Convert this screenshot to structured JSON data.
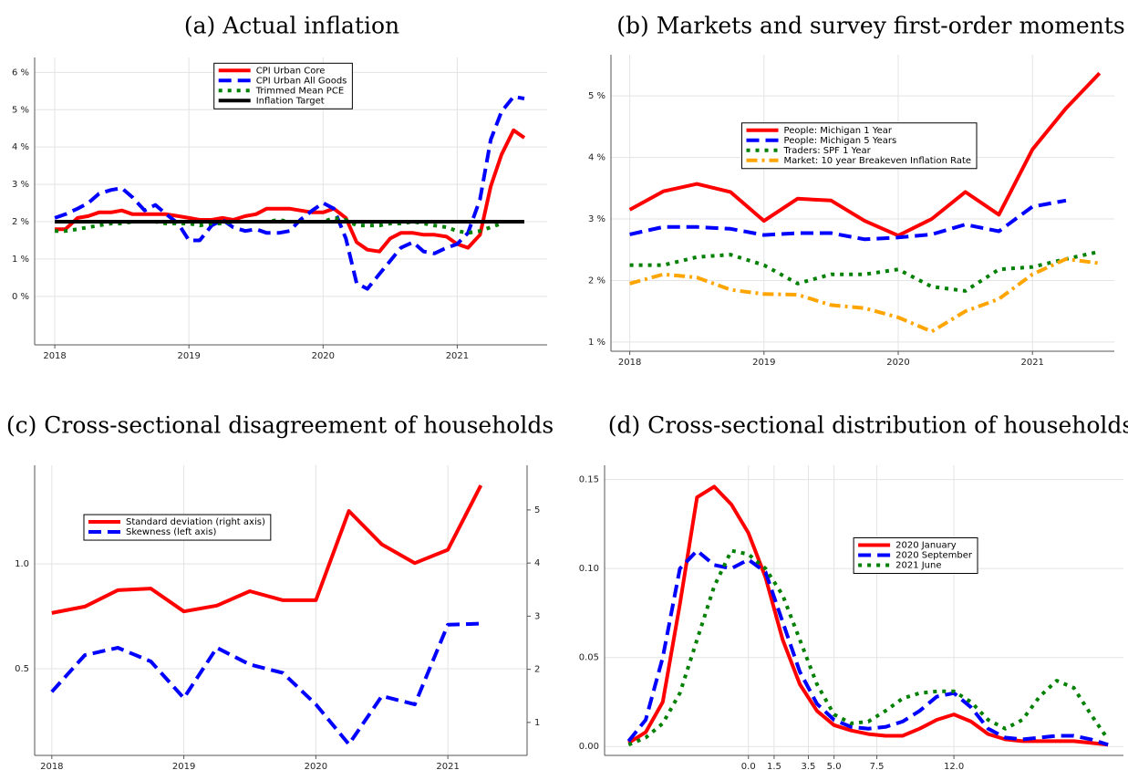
{
  "chart_data": [
    {
      "type": "line",
      "title": "(a) Actual inflation",
      "x": [
        2018,
        2018.08,
        2018.17,
        2018.25,
        2018.33,
        2018.42,
        2018.5,
        2018.58,
        2018.67,
        2018.75,
        2018.83,
        2018.92,
        2019,
        2019.08,
        2019.17,
        2019.25,
        2019.33,
        2019.42,
        2019.5,
        2019.58,
        2019.67,
        2019.75,
        2019.83,
        2019.92,
        2020,
        2020.08,
        2020.17,
        2020.25,
        2020.33,
        2020.42,
        2020.5,
        2020.58,
        2020.67,
        2020.75,
        2020.83,
        2020.92,
        2021,
        2021.08,
        2021.17,
        2021.25,
        2021.33,
        2021.42,
        2021.5
      ],
      "series": [
        {
          "name": "CPI Urban Core",
          "color": "#ff0000",
          "style": "solid",
          "values": [
            1.8,
            1.8,
            2.1,
            2.15,
            2.25,
            2.25,
            2.3,
            2.2,
            2.2,
            2.2,
            2.2,
            2.15,
            2.1,
            2.05,
            2.05,
            2.1,
            2.05,
            2.15,
            2.2,
            2.35,
            2.35,
            2.35,
            2.3,
            2.25,
            2.25,
            2.35,
            2.1,
            1.45,
            1.25,
            1.2,
            1.55,
            1.7,
            1.7,
            1.65,
            1.65,
            1.6,
            1.4,
            1.3,
            1.65,
            2.95,
            3.8,
            4.45,
            4.25
          ]
        },
        {
          "name": "CPI Urban All Goods",
          "color": "#0000ff",
          "style": "dashed",
          "values": [
            2.1,
            2.2,
            2.35,
            2.5,
            2.75,
            2.85,
            2.9,
            2.65,
            2.3,
            2.45,
            2.2,
            1.95,
            1.5,
            1.5,
            1.9,
            2.05,
            1.85,
            1.75,
            1.8,
            1.7,
            1.7,
            1.75,
            2.05,
            2.3,
            2.5,
            2.35,
            1.55,
            0.35,
            0.2,
            0.6,
            0.95,
            1.3,
            1.45,
            1.2,
            1.15,
            1.3,
            1.4,
            1.7,
            2.6,
            4.2,
            4.95,
            5.35,
            5.3
          ]
        },
        {
          "name": "Trimmed Mean PCE",
          "color": "#008000",
          "style": "dotted",
          "values": [
            1.75,
            1.75,
            1.8,
            1.85,
            1.9,
            1.95,
            1.95,
            2.0,
            2.0,
            2.0,
            1.95,
            1.95,
            1.95,
            1.9,
            1.95,
            1.95,
            2.0,
            2.0,
            2.0,
            2.0,
            2.05,
            2.0,
            2.0,
            2.0,
            2.0,
            2.1,
            2.05,
            1.9,
            1.9,
            1.9,
            1.95,
            1.95,
            2.0,
            1.95,
            1.9,
            1.85,
            1.75,
            1.7,
            1.75,
            1.85,
            1.95,
            null,
            null
          ]
        },
        {
          "name": "Inflation Target",
          "color": "#000000",
          "style": "solid",
          "values": [
            2,
            2,
            2,
            2,
            2,
            2,
            2,
            2,
            2,
            2,
            2,
            2,
            2,
            2,
            2,
            2,
            2,
            2,
            2,
            2,
            2,
            2,
            2,
            2,
            2,
            2,
            2,
            2,
            2,
            2,
            2,
            2,
            2,
            2,
            2,
            2,
            2,
            2,
            2,
            2,
            2,
            2,
            2
          ]
        }
      ],
      "xlim": [
        2017.85,
        2021.67
      ],
      "ylim": [
        -1.3,
        6.4
      ],
      "xticks": [
        2018,
        2019,
        2020,
        2021
      ],
      "yticks": [
        {
          "value": 0,
          "label": "0 %"
        },
        {
          "value": 1,
          "label": "1 %"
        },
        {
          "value": 2,
          "label": "2 %"
        },
        {
          "value": 3,
          "label": "3 %"
        },
        {
          "value": 4,
          "label": "4 %"
        },
        {
          "value": 5,
          "label": "5 %"
        },
        {
          "value": 6,
          "label": "6 %"
        }
      ],
      "grid": true,
      "legend": "upper center"
    },
    {
      "type": "line",
      "title": "(b) Markets and survey first-order moments",
      "x": [
        2018,
        2018.25,
        2018.5,
        2018.75,
        2019,
        2019.25,
        2019.5,
        2019.75,
        2020,
        2020.25,
        2020.5,
        2020.75,
        2021,
        2021.25,
        2021.5
      ],
      "series": [
        {
          "name": "People: Michigan 1 Year",
          "color": "#ff0000",
          "style": "solid",
          "values": [
            3.15,
            3.45,
            3.57,
            3.44,
            2.97,
            3.33,
            3.3,
            2.97,
            2.73,
            3.0,
            3.44,
            3.07,
            4.13,
            4.8,
            5.37
          ]
        },
        {
          "name": "People: Michigan 5 Years",
          "color": "#0000ff",
          "style": "dashed",
          "values": [
            2.75,
            2.87,
            2.87,
            2.84,
            2.74,
            2.77,
            2.77,
            2.67,
            2.7,
            2.75,
            2.91,
            2.8,
            3.2,
            3.3,
            null
          ]
        },
        {
          "name": "Traders: SPF 1 Year",
          "color": "#008000",
          "style": "dotted",
          "values": [
            2.25,
            2.25,
            2.38,
            2.42,
            2.25,
            1.95,
            2.1,
            2.1,
            2.18,
            1.9,
            1.83,
            2.18,
            2.22,
            2.35,
            2.47
          ]
        },
        {
          "name": "Market: 10 year Breakeven Inflation Rate",
          "color": "#ffa500",
          "style": "dashdot",
          "values": [
            1.95,
            2.1,
            2.05,
            1.85,
            1.78,
            1.77,
            1.6,
            1.55,
            1.4,
            1.17,
            1.5,
            1.7,
            2.1,
            2.35,
            2.28
          ]
        }
      ],
      "xlim": [
        2017.86,
        2021.61
      ],
      "ylim": [
        0.85,
        5.67
      ],
      "xticks": [
        2018,
        2019,
        2020,
        2021
      ],
      "yticks": [
        {
          "value": 1,
          "label": "1 %"
        },
        {
          "value": 2,
          "label": "2 %"
        },
        {
          "value": 3,
          "label": "3 %"
        },
        {
          "value": 4,
          "label": "4 %"
        },
        {
          "value": 5,
          "label": "5 %"
        }
      ],
      "grid": true,
      "legend": "center left"
    },
    {
      "type": "line",
      "title": "(c) Cross-sectional disagreement of households",
      "x": [
        2018,
        2018.25,
        2018.5,
        2018.75,
        2019,
        2019.25,
        2019.5,
        2019.75,
        2020,
        2020.25,
        2020.5,
        2020.75,
        2021,
        2021.25
      ],
      "series": [
        {
          "name": "Standard deviation (right axis)",
          "color": "#ff0000",
          "style": "solid",
          "axis": "y2",
          "values": [
            3.06,
            3.18,
            3.49,
            3.52,
            3.09,
            3.2,
            3.47,
            3.3,
            3.3,
            4.98,
            4.35,
            4.0,
            4.25,
            5.46
          ]
        },
        {
          "name": "Skewness (left axis)",
          "color": "#0000ff",
          "style": "dashed",
          "values": [
            0.39,
            0.565,
            0.6,
            0.535,
            0.36,
            0.6,
            0.52,
            0.48,
            0.33,
            0.14,
            0.37,
            0.33,
            0.71,
            0.715
          ]
        }
      ],
      "xlim": [
        2017.87,
        2021.6
      ],
      "ylim": [
        0.087,
        1.47
      ],
      "y2lim": [
        0.38,
        5.84
      ],
      "xticks": [
        2018,
        2019,
        2020,
        2021
      ],
      "yticks": [
        0.5,
        {
          "value": 1,
          "label": "1.0"
        }
      ],
      "y2ticks": [
        1,
        2,
        3,
        4,
        5
      ],
      "grid": true,
      "legend": "upper left"
    },
    {
      "type": "line",
      "title": "(d) Cross-sectional distribution of households",
      "x": [
        -7,
        -6,
        -5,
        -4,
        -3,
        -2,
        -1,
        0,
        1,
        2,
        3,
        4,
        5,
        6,
        7,
        8,
        9,
        10,
        11,
        12,
        13,
        14,
        15,
        16,
        17,
        18,
        19,
        20,
        21
      ],
      "series": [
        {
          "name": "2020 January",
          "color": "#ff0000",
          "style": "solid",
          "values": [
            0.002,
            0.008,
            0.025,
            0.08,
            0.14,
            0.146,
            0.136,
            0.12,
            0.095,
            0.06,
            0.035,
            0.02,
            0.012,
            0.009,
            0.007,
            0.006,
            0.006,
            0.01,
            0.015,
            0.018,
            0.014,
            0.007,
            0.004,
            0.003,
            0.003,
            0.003,
            0.003,
            0.002,
            0.001
          ]
        },
        {
          "name": "2020 September",
          "color": "#0000ff",
          "style": "dashed",
          "values": [
            0.003,
            0.015,
            0.05,
            0.1,
            0.11,
            0.102,
            0.1,
            0.105,
            0.098,
            0.07,
            0.042,
            0.024,
            0.015,
            0.011,
            0.01,
            0.011,
            0.014,
            0.02,
            0.028,
            0.03,
            0.022,
            0.01,
            0.005,
            0.004,
            0.005,
            0.006,
            0.006,
            0.004,
            0.001
          ]
        },
        {
          "name": "2021 June",
          "color": "#008000",
          "style": "dotted",
          "values": [
            0.001,
            0.005,
            0.013,
            0.03,
            0.06,
            0.09,
            0.11,
            0.108,
            0.1,
            0.085,
            0.06,
            0.035,
            0.018,
            0.013,
            0.014,
            0.02,
            0.027,
            0.03,
            0.031,
            0.031,
            0.025,
            0.015,
            0.01,
            0.015,
            0.028,
            0.037,
            0.033,
            0.018,
            0.004
          ]
        }
      ],
      "xlim": [
        -8.4,
        21.9
      ],
      "ylim": [
        -0.005,
        0.158
      ],
      "xticks": [
        {
          "value": 0,
          "label": "0.0"
        },
        1.5,
        3.5,
        {
          "value": 5,
          "label": "5.0"
        },
        7.5,
        {
          "value": 12,
          "label": "12.0"
        }
      ],
      "yticks": [
        {
          "value": 0,
          "label": "0.00"
        },
        0.05,
        {
          "value": 0.1,
          "label": "0.10"
        },
        0.15
      ],
      "grid": true,
      "legend": "center"
    }
  ]
}
